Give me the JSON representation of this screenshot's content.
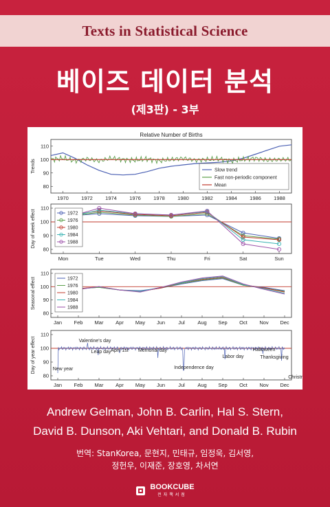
{
  "series": "Texts in Statistical Science",
  "title": "베이즈 데이터 분석",
  "subtitle": "(제3판) - 3부",
  "authors_line1": "Andrew Gelman, John B. Carlin, Hal S. Stern,",
  "authors_line2": "David B. Dunson, Aki Vehtari, and Donald B. Rubin",
  "translators_line1": "번역: StanKorea, 문현지, 민태규, 임정욱, 김서영,",
  "translators_line2": "정헌우, 이재준, 장호영, 차서연",
  "publisher": {
    "name": "BOOKCUBE",
    "sub": "전자책서점",
    "logo": "bookcube-logo-icon"
  },
  "colors": {
    "background": "#c31f3a",
    "band": "#f1d3d2",
    "series_text": "#8a1a2c",
    "text": "#ffffff"
  },
  "chart_data": [
    {
      "type": "line",
      "title": "Relative Number of Births",
      "ylabel": "Trends",
      "x": [
        1969,
        1970,
        1971,
        1972,
        1973,
        1974,
        1975,
        1976,
        1977,
        1978,
        1979,
        1980,
        1981,
        1982,
        1983,
        1984,
        1985,
        1986,
        1987,
        1988,
        1989
      ],
      "xticks": [
        "1970",
        "1972",
        "1974",
        "1976",
        "1978",
        "1980",
        "1982",
        "1984",
        "1986",
        "1988"
      ],
      "yticks": [
        "110",
        "100",
        "90",
        "80"
      ],
      "ylim": [
        75,
        115
      ],
      "legend": [
        "Slow trend",
        "Fast non-periodic component",
        "Mean"
      ],
      "legend_position": "right",
      "series": [
        {
          "name": "Slow trend",
          "color": "#4a5fb3",
          "values": [
            103,
            105,
            101,
            96,
            92,
            89,
            88.5,
            89,
            91,
            93.5,
            95,
            96,
            97,
            97.5,
            98,
            99,
            101,
            104,
            107,
            110,
            111
          ]
        },
        {
          "name": "Fast non-periodic component",
          "color": "#5a9e4a",
          "values": [
            100,
            101,
            99,
            100.5,
            99,
            101,
            100,
            99.5,
            100.5,
            99,
            100,
            101,
            99.5,
            100,
            100.5,
            99,
            100,
            101,
            99.5,
            100,
            100
          ]
        },
        {
          "name": "Mean",
          "color": "#c0392b",
          "values": [
            100,
            100,
            100,
            100,
            100,
            100,
            100,
            100,
            100,
            100,
            100,
            100,
            100,
            100,
            100,
            100,
            100,
            100,
            100,
            100,
            100
          ]
        }
      ]
    },
    {
      "type": "line",
      "ylabel": "Day of week effect",
      "categories": [
        "Mon",
        "Tue",
        "Wed",
        "Thu",
        "Fri",
        "Sat",
        "Sun"
      ],
      "yticks": [
        "110",
        "100",
        "90",
        "80"
      ],
      "ylim": [
        77,
        113
      ],
      "legend": [
        "1972",
        "1976",
        "1980",
        "1984",
        "1988"
      ],
      "legend_position": "left",
      "series": [
        {
          "name": "1972",
          "color": "#4a5fb3",
          "values": [
            104,
            106,
            104.5,
            104,
            105,
            92,
            88
          ]
        },
        {
          "name": "1976",
          "color": "#5a9e4a",
          "values": [
            103.5,
            107,
            105,
            104,
            106,
            90,
            87.5
          ]
        },
        {
          "name": "1980",
          "color": "#c0392b",
          "values": [
            104,
            108,
            105.5,
            104.5,
            107,
            89,
            87
          ]
        },
        {
          "name": "1984",
          "color": "#39b3b3",
          "values": [
            103,
            108.5,
            106,
            105,
            107.5,
            87,
            84
          ]
        },
        {
          "name": "1988",
          "color": "#9b4fa8",
          "values": [
            102.5,
            110,
            106,
            105,
            108,
            84,
            80
          ]
        }
      ],
      "mean": 100
    },
    {
      "type": "line",
      "ylabel": "Seasonal effect",
      "categories": [
        "Jan",
        "Feb",
        "Mar",
        "Apr",
        "May",
        "Jun",
        "Jul",
        "Aug",
        "Sep",
        "Oct",
        "Nov",
        "Dec"
      ],
      "yticks": [
        "110",
        "100",
        "90",
        "80"
      ],
      "ylim": [
        77,
        113
      ],
      "legend": [
        "1972",
        "1976",
        "1980",
        "1984",
        "1988"
      ],
      "legend_position": "left",
      "series": [
        {
          "name": "1972",
          "color": "#4a5fb3",
          "values": [
            97,
            98.5,
            99.5,
            97.5,
            97,
            99,
            102,
            104.5,
            106,
            101,
            99.5,
            97
          ]
        },
        {
          "name": "1976",
          "color": "#5a9e4a",
          "values": [
            96.5,
            98.5,
            99.5,
            97.5,
            96.5,
            99,
            102.5,
            105,
            106.5,
            101,
            99,
            96.5
          ]
        },
        {
          "name": "1980",
          "color": "#c0392b",
          "values": [
            96,
            98.5,
            100,
            97.5,
            96.5,
            99,
            103,
            105.5,
            107,
            101.5,
            99,
            96
          ]
        },
        {
          "name": "1984",
          "color": "#39b3b3",
          "values": [
            95.5,
            98,
            100,
            97.5,
            96.5,
            99.5,
            103,
            106,
            107.5,
            101.5,
            98.5,
            95
          ]
        },
        {
          "name": "1988",
          "color": "#9b4fa8",
          "values": [
            95,
            98,
            100,
            97.5,
            96,
            99.5,
            103.5,
            106.5,
            108,
            102,
            98,
            94.5
          ]
        }
      ],
      "mean": 100
    },
    {
      "type": "line",
      "ylabel": "Day of year effect",
      "categories": [
        "Jan",
        "Feb",
        "Mar",
        "Apr",
        "May",
        "Jun",
        "Jul",
        "Aug",
        "Sep",
        "Oct",
        "Nov",
        "Dec"
      ],
      "yticks": [
        "110",
        "100",
        "90",
        "80"
      ],
      "ylim": [
        77,
        113
      ],
      "series_color": "#4a5fb3",
      "mean": 100,
      "annotations": [
        {
          "text": "Valentine's day",
          "x": 1.45,
          "y": 100
        },
        {
          "text": "Leap day",
          "x": 2.0,
          "y": 100
        },
        {
          "text": "April 1st",
          "x": 3.0,
          "y": 100
        },
        {
          "text": "Memorial day",
          "x": 4.85,
          "y": 100
        },
        {
          "text": "New year",
          "x": 0.0,
          "y": 100
        },
        {
          "text": "Independence day",
          "x": 6.1,
          "y": 100
        },
        {
          "text": "Labor day",
          "x": 8.1,
          "y": 100
        },
        {
          "text": "Halloween",
          "x": 9.95,
          "y": 100
        },
        {
          "text": "Thanksgiving",
          "x": 10.85,
          "y": 100
        },
        {
          "text": "Christmas",
          "x": 11.8,
          "y": 100
        }
      ],
      "spikes": [
        {
          "x": 0.0,
          "y": 82
        },
        {
          "x": 1.45,
          "y": 104
        },
        {
          "x": 1.95,
          "y": 95
        },
        {
          "x": 3.0,
          "y": 97
        },
        {
          "x": 4.85,
          "y": 93
        },
        {
          "x": 6.1,
          "y": 84
        },
        {
          "x": 8.1,
          "y": 92
        },
        {
          "x": 9.95,
          "y": 96
        },
        {
          "x": 10.85,
          "y": 91
        },
        {
          "x": 11.4,
          "y": 106
        },
        {
          "x": 11.78,
          "y": 76
        },
        {
          "x": 11.95,
          "y": 109
        }
      ]
    }
  ]
}
